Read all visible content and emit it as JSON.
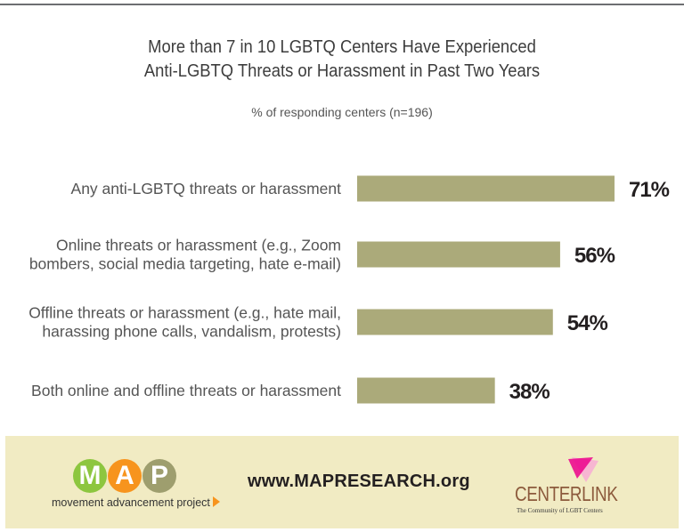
{
  "chart_data": {
    "type": "bar",
    "orientation": "horizontal",
    "title": "More than 7 in 10 LGBTQ Centers Have Experienced Anti-LGBTQ Threats or Harassment in Past Two Years",
    "title_lines": [
      "More than 7 in 10 LGBTQ Centers Have Experienced",
      "Anti-LGBTQ Threats or Harassment in Past Two Years"
    ],
    "subtitle": "% of responding centers (n=196)",
    "categories": [
      [
        "Any anti-LGBTQ threats or harassment"
      ],
      [
        "Online threats or harassment (e.g., Zoom",
        "bombers, social media targeting, hate e-mail)"
      ],
      [
        "Offline threats or harassment (e.g., hate mail,",
        "harassing phone calls, vandalism, protests)"
      ],
      [
        "Both online and offline threats or harassment"
      ]
    ],
    "values": [
      71,
      56,
      54,
      38
    ],
    "value_labels": [
      "71%",
      "56%",
      "54%",
      "38%"
    ],
    "xlim": [
      0,
      100
    ],
    "bar_color": "#abaa7a",
    "label_color": "#231f20",
    "category_color": "#555555",
    "grid": false,
    "legend": "none"
  },
  "footer": {
    "background": "#f1ebc3",
    "map_logo": {
      "letters": [
        "M",
        "A",
        "P"
      ],
      "colors": [
        "#8dc63f",
        "#f7941d",
        "#9e9e6e"
      ],
      "tagline": "movement advancement project"
    },
    "url": "www.MAPRESEARCH.org",
    "centerlink": {
      "name": "CENTERLINK",
      "tagline": "The Community of LGBT Centers",
      "mark_colors": [
        "#ec008c",
        "#f7b6d2"
      ]
    }
  }
}
